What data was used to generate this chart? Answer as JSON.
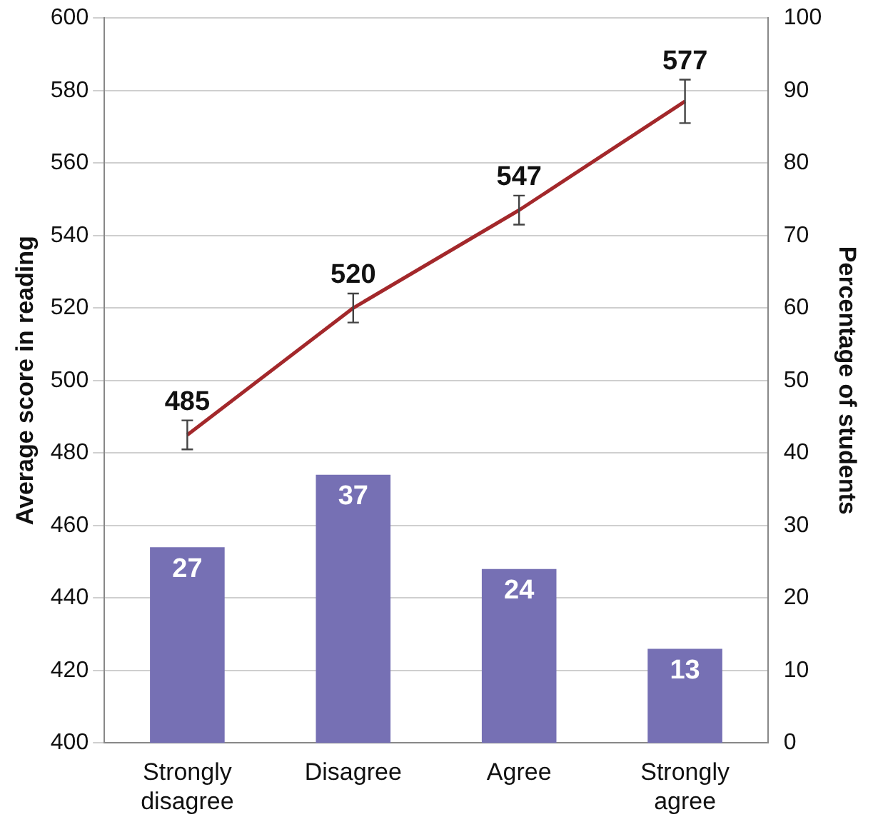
{
  "chart_data": {
    "type": "bar",
    "categories": [
      "Strongly disagree",
      "Disagree",
      "Agree",
      "Strongly agree"
    ],
    "ylabel": "Average score in reading",
    "y2label": "Percentage of students",
    "ylim": [
      400,
      600
    ],
    "yticks": [
      400,
      420,
      440,
      460,
      480,
      500,
      520,
      540,
      560,
      580,
      600
    ],
    "y2lim": [
      0,
      100
    ],
    "y2ticks": [
      0,
      10,
      20,
      30,
      40,
      50,
      60,
      70,
      80,
      90,
      100
    ],
    "series": [
      {
        "axis": "y2",
        "color": "#7670b4",
        "values": [
          27,
          37,
          24,
          13
        ]
      },
      {
        "type": "line",
        "axis": "y",
        "color": "#a3282b",
        "values": [
          485,
          520,
          547,
          577
        ],
        "errors": [
          4,
          4,
          4,
          6
        ]
      }
    ],
    "data_labels": true,
    "grid": "y",
    "legend": false,
    "marker": "none",
    "line_style": "solid"
  }
}
